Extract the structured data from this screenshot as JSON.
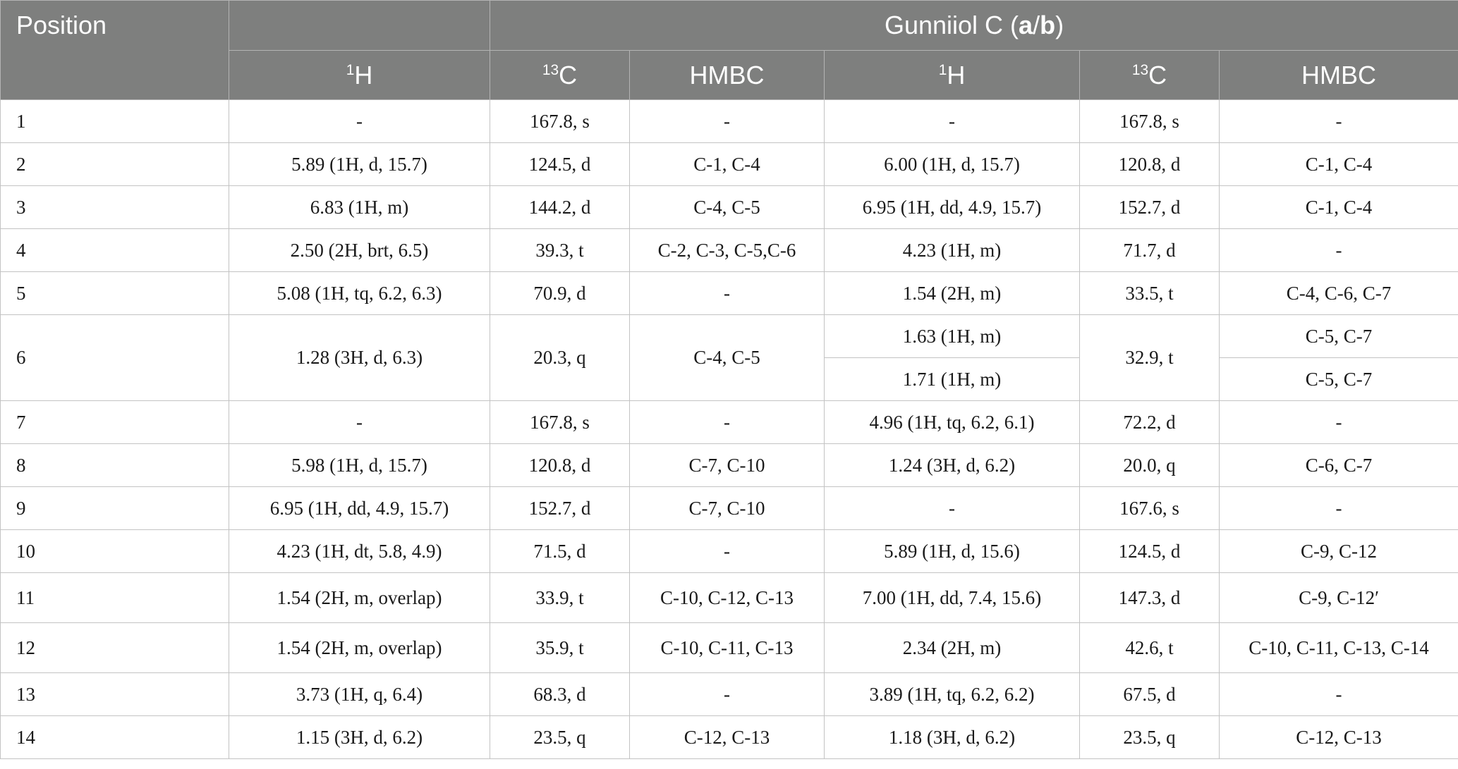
{
  "table": {
    "position_header": "Position",
    "compound_prefix": "Gunniiol C (",
    "compound_a": "a",
    "compound_sep": "/",
    "compound_b": "b",
    "compound_suffix": ")",
    "sub_headers": [
      {
        "sup": "1",
        "text": "H"
      },
      {
        "sup": "13",
        "text": "C"
      },
      {
        "sup": "",
        "text": "HMBC"
      },
      {
        "sup": "1",
        "text": "H"
      },
      {
        "sup": "13",
        "text": "C"
      },
      {
        "sup": "",
        "text": "HMBC"
      }
    ],
    "rows": [
      {
        "pos": "1",
        "a_h": "-",
        "a_c": "167.8, s",
        "a_hmbc": "-",
        "b_h": "-",
        "b_c": "167.8, s",
        "b_hmbc": "-"
      },
      {
        "pos": "2",
        "a_h": "5.89 (1H, d, 15.7)",
        "a_c": "124.5, d",
        "a_hmbc": "C-1, C-4",
        "b_h": "6.00 (1H, d, 15.7)",
        "b_c": "120.8, d",
        "b_hmbc": "C-1, C-4"
      },
      {
        "pos": "3",
        "a_h": "6.83 (1H, m)",
        "a_c": "144.2, d",
        "a_hmbc": "C-4, C-5",
        "b_h": "6.95 (1H, dd, 4.9, 15.7)",
        "b_c": "152.7, d",
        "b_hmbc": "C-1, C-4"
      },
      {
        "pos": "4",
        "a_h": "2.50 (2H, brt, 6.5)",
        "a_c": "39.3, t",
        "a_hmbc": "C-2, C-3, C-5,C-6",
        "b_h": "4.23 (1H, m)",
        "b_c": "71.7, d",
        "b_hmbc": "-"
      },
      {
        "pos": "5",
        "a_h": "5.08 (1H, tq, 6.2, 6.3)",
        "a_c": "70.9, d",
        "a_hmbc": "-",
        "b_h": "1.54 (2H, m)",
        "b_c": "33.5, t",
        "b_hmbc": "C-4, C-6, C-7"
      },
      {
        "pos": "6",
        "a_h": "1.28 (3H, d, 6.3)",
        "a_c": "20.3, q",
        "a_hmbc": "C-4, C-5",
        "b_h": "1.63 (1H, m)",
        "b_c": "32.9, t",
        "b_hmbc": "C-5, C-7",
        "b_h2": "1.71 (1H, m)",
        "b_hmbc2": "C-5, C-7"
      },
      {
        "pos": "7",
        "a_h": "-",
        "a_c": "167.8, s",
        "a_hmbc": "-",
        "b_h": "4.96 (1H, tq, 6.2, 6.1)",
        "b_c": "72.2, d",
        "b_hmbc": "-"
      },
      {
        "pos": "8",
        "a_h": "5.98 (1H, d, 15.7)",
        "a_c": "120.8, d",
        "a_hmbc": "C-7, C-10",
        "b_h": "1.24 (3H, d, 6.2)",
        "b_c": "20.0, q",
        "b_hmbc": "C-6, C-7"
      },
      {
        "pos": "9",
        "a_h": "6.95 (1H, dd, 4.9, 15.7)",
        "a_c": "152.7, d",
        "a_hmbc": "C-7, C-10",
        "b_h": "-",
        "b_c": "167.6, s",
        "b_hmbc": "-"
      },
      {
        "pos": "10",
        "a_h": "4.23 (1H, dt, 5.8, 4.9)",
        "a_c": "71.5, d",
        "a_hmbc": "-",
        "b_h": "5.89 (1H, d, 15.6)",
        "b_c": "124.5, d",
        "b_hmbc": "C-9, C-12"
      },
      {
        "pos": "11",
        "a_h": "1.54 (2H, m, overlap)",
        "a_c": "33.9, t",
        "a_hmbc": "C-10, C-12, C-13",
        "b_h": "7.00 (1H, dd, 7.4, 15.6)",
        "b_c": "147.3, d",
        "b_hmbc": "C-9, C-12′"
      },
      {
        "pos": "12",
        "a_h": "1.54 (2H, m, overlap)",
        "a_c": "35.9, t",
        "a_hmbc": "C-10, C-11, C-13",
        "b_h": "2.34 (2H, m)",
        "b_c": "42.6, t",
        "b_hmbc": "C-10, C-11, C-13, C-14"
      },
      {
        "pos": "13",
        "a_h": "3.73 (1H, q, 6.4)",
        "a_c": "68.3, d",
        "a_hmbc": "-",
        "b_h": "3.89 (1H, tq, 6.2, 6.2)",
        "b_c": "67.5, d",
        "b_hmbc": "-"
      },
      {
        "pos": "14",
        "a_h": "1.15 (3H, d, 6.2)",
        "a_c": "23.5, q",
        "a_hmbc": "C-12, C-13",
        "b_h": "1.18 (3H, d, 6.2)",
        "b_c": "23.5, q",
        "b_hmbc": "C-12, C-13"
      }
    ]
  }
}
